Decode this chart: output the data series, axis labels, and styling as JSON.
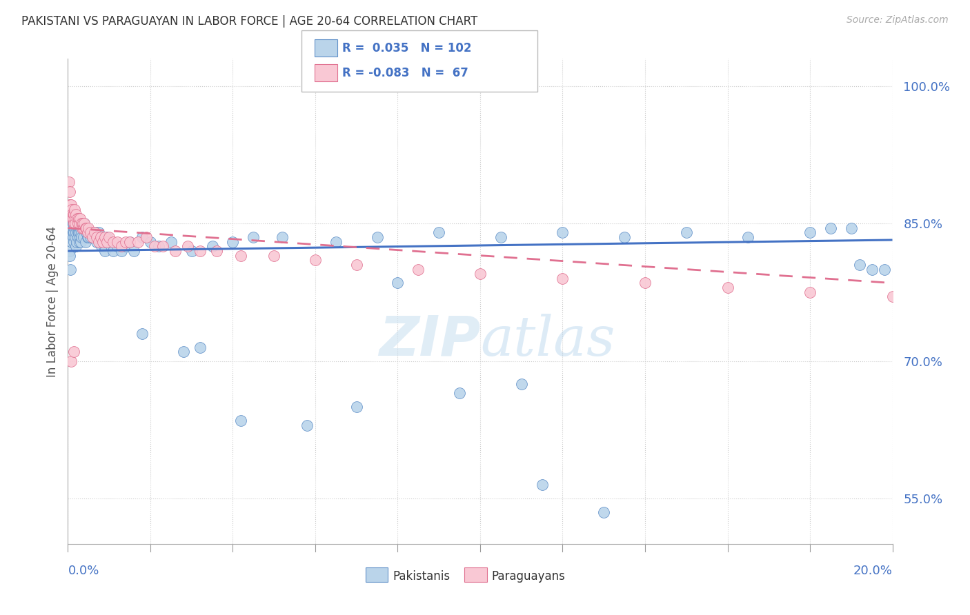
{
  "title": "PAKISTANI VS PARAGUAYAN IN LABOR FORCE | AGE 20-64 CORRELATION CHART",
  "source": "Source: ZipAtlas.com",
  "ylabel": "In Labor Force | Age 20-64",
  "legend_label1": "Pakistanis",
  "legend_label2": "Paraguayans",
  "R1": 0.035,
  "N1": 102,
  "R2": -0.083,
  "N2": 67,
  "xlim": [
    0.0,
    20.0
  ],
  "ylim": [
    50.0,
    103.0
  ],
  "yticks": [
    55.0,
    70.0,
    85.0,
    100.0
  ],
  "color_blue": "#bad4ea",
  "color_blue_edge": "#6090c8",
  "color_blue_line": "#4472c4",
  "color_pink": "#f9c8d4",
  "color_pink_edge": "#e07090",
  "color_pink_line": "#e07090",
  "color_text_blue": "#4472c4",
  "background_color": "#ffffff",
  "watermark_zip": "ZIP",
  "watermark_atlas": "atlas",
  "pakistani_x": [
    0.04,
    0.05,
    0.06,
    0.07,
    0.08,
    0.09,
    0.1,
    0.1,
    0.11,
    0.12,
    0.12,
    0.13,
    0.14,
    0.15,
    0.15,
    0.16,
    0.17,
    0.18,
    0.19,
    0.2,
    0.21,
    0.22,
    0.23,
    0.24,
    0.25,
    0.26,
    0.27,
    0.28,
    0.29,
    0.3,
    0.31,
    0.32,
    0.33,
    0.35,
    0.36,
    0.38,
    0.4,
    0.41,
    0.43,
    0.45,
    0.47,
    0.48,
    0.5,
    0.52,
    0.55,
    0.58,
    0.6,
    0.62,
    0.65,
    0.68,
    0.7,
    0.73,
    0.75,
    0.78,
    0.8,
    0.82,
    0.85,
    0.88,
    0.9,
    0.95,
    1.0,
    1.05,
    1.1,
    1.2,
    1.3,
    1.4,
    1.5,
    1.6,
    1.8,
    2.0,
    2.2,
    2.5,
    3.0,
    3.5,
    4.0,
    4.5,
    5.2,
    6.5,
    7.5,
    9.0,
    10.5,
    12.0,
    13.5,
    15.0,
    16.5,
    18.0,
    18.5,
    19.0,
    19.2,
    19.5,
    19.8,
    1.8,
    2.8,
    3.2,
    4.2,
    5.8,
    7.0,
    8.0,
    9.5,
    11.0,
    11.5,
    13.0
  ],
  "pakistani_y": [
    82.0,
    81.5,
    80.0,
    83.5,
    84.0,
    85.0,
    84.5,
    83.0,
    85.5,
    84.0,
    83.5,
    85.0,
    84.5,
    84.0,
    83.0,
    85.0,
    84.5,
    83.5,
    82.5,
    84.0,
    83.0,
    84.5,
    85.0,
    84.0,
    83.5,
    84.0,
    83.0,
    84.5,
    83.5,
    84.0,
    83.0,
    84.0,
    83.5,
    85.0,
    84.5,
    83.5,
    85.0,
    84.5,
    83.0,
    84.0,
    83.5,
    84.0,
    83.5,
    84.0,
    83.5,
    84.0,
    83.5,
    84.0,
    83.5,
    84.0,
    83.0,
    83.5,
    84.0,
    83.5,
    83.0,
    82.5,
    83.0,
    82.5,
    82.0,
    83.5,
    83.0,
    82.5,
    82.0,
    82.5,
    82.0,
    82.5,
    83.0,
    82.0,
    83.5,
    83.0,
    82.5,
    83.0,
    82.0,
    82.5,
    83.0,
    83.5,
    83.5,
    83.0,
    83.5,
    84.0,
    83.5,
    84.0,
    83.5,
    84.0,
    83.5,
    84.0,
    84.5,
    84.5,
    80.5,
    80.0,
    80.0,
    73.0,
    71.0,
    71.5,
    63.5,
    63.0,
    65.0,
    78.5,
    66.5,
    67.5,
    56.5,
    53.5
  ],
  "paraguayan_x": [
    0.03,
    0.04,
    0.05,
    0.06,
    0.07,
    0.08,
    0.09,
    0.1,
    0.11,
    0.12,
    0.13,
    0.14,
    0.15,
    0.16,
    0.17,
    0.18,
    0.2,
    0.22,
    0.24,
    0.26,
    0.28,
    0.3,
    0.32,
    0.34,
    0.36,
    0.38,
    0.4,
    0.42,
    0.45,
    0.48,
    0.5,
    0.55,
    0.6,
    0.65,
    0.7,
    0.75,
    0.8,
    0.85,
    0.9,
    0.95,
    1.0,
    1.1,
    1.2,
    1.3,
    1.4,
    1.5,
    1.7,
    1.9,
    2.1,
    2.3,
    2.6,
    2.9,
    3.2,
    3.6,
    4.2,
    5.0,
    6.0,
    7.0,
    8.5,
    10.0,
    12.0,
    14.0,
    16.0,
    18.0,
    20.0,
    0.08,
    0.15
  ],
  "paraguayan_y": [
    89.5,
    87.0,
    88.5,
    87.0,
    86.5,
    87.0,
    86.5,
    86.0,
    85.5,
    86.0,
    85.5,
    85.0,
    86.0,
    86.5,
    85.5,
    85.0,
    86.0,
    85.5,
    85.0,
    85.5,
    85.0,
    85.5,
    85.0,
    84.5,
    85.0,
    84.5,
    85.0,
    84.5,
    84.5,
    84.0,
    84.5,
    84.0,
    83.5,
    84.0,
    83.5,
    83.0,
    83.5,
    83.0,
    83.5,
    83.0,
    83.5,
    83.0,
    83.0,
    82.5,
    83.0,
    83.0,
    83.0,
    83.5,
    82.5,
    82.5,
    82.0,
    82.5,
    82.0,
    82.0,
    81.5,
    81.5,
    81.0,
    80.5,
    80.0,
    79.5,
    79.0,
    78.5,
    78.0,
    77.5,
    77.0,
    70.0,
    71.0
  ]
}
